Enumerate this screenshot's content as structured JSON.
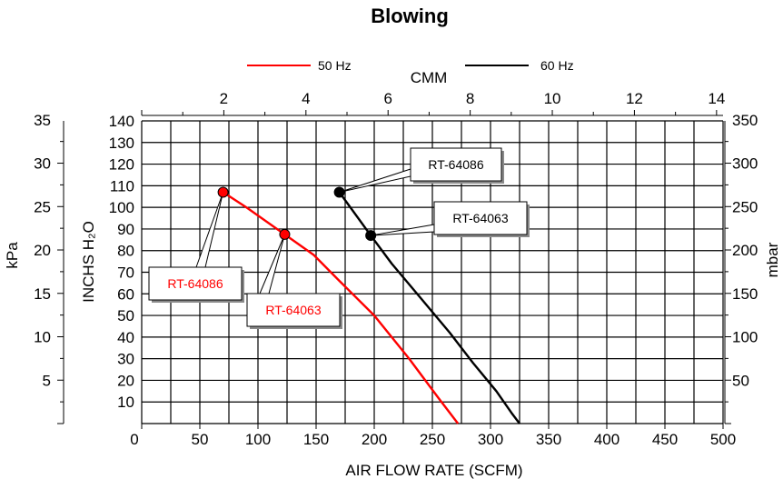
{
  "chart_data": {
    "type": "line",
    "title": "Blowing",
    "xlabel": "AIR FLOW RATE (SCFM)",
    "ylabel": "INCHS  H₂O",
    "x2label": "CMM",
    "y_left2_label": "kPa",
    "y_right_label": "mbar",
    "xlim": [
      0,
      500
    ],
    "ylim": [
      0,
      140
    ],
    "x_ticks": [
      0,
      50,
      100,
      150,
      200,
      250,
      300,
      350,
      400,
      450,
      500
    ],
    "y_ticks": [
      10,
      20,
      30,
      40,
      50,
      60,
      70,
      80,
      90,
      100,
      110,
      120,
      130,
      140
    ],
    "top_ticks": [
      2,
      4,
      6,
      8,
      10,
      12,
      14
    ],
    "kpa_ticks": [
      5,
      10,
      15,
      20,
      25,
      30,
      35
    ],
    "mbar_ticks": [
      50,
      100,
      150,
      200,
      250,
      300,
      350
    ],
    "grid": true,
    "legend_position": "top",
    "series": [
      {
        "name": "50 Hz",
        "color": "#ff0000",
        "x": [
          70,
          90,
          123,
          148,
          170,
          200,
          230,
          255,
          272
        ],
        "y": [
          107,
          100,
          87.5,
          78,
          66,
          50,
          30,
          12,
          0
        ]
      },
      {
        "name": "60 Hz",
        "color": "#000000",
        "x": [
          170,
          197,
          215,
          240,
          265,
          285,
          305,
          318,
          325
        ],
        "y": [
          107,
          87,
          74,
          58,
          42,
          28,
          15,
          5,
          0
        ]
      }
    ],
    "markers": [
      {
        "x": 70,
        "y": 107,
        "color": "#ff0000",
        "label": "RT-64086"
      },
      {
        "x": 123,
        "y": 87.5,
        "color": "#ff0000",
        "label": "RT-64063"
      },
      {
        "x": 170,
        "y": 107,
        "color": "#000000",
        "label": "RT-64086"
      },
      {
        "x": 197,
        "y": 87,
        "color": "#000000",
        "label": "RT-64063"
      }
    ]
  }
}
